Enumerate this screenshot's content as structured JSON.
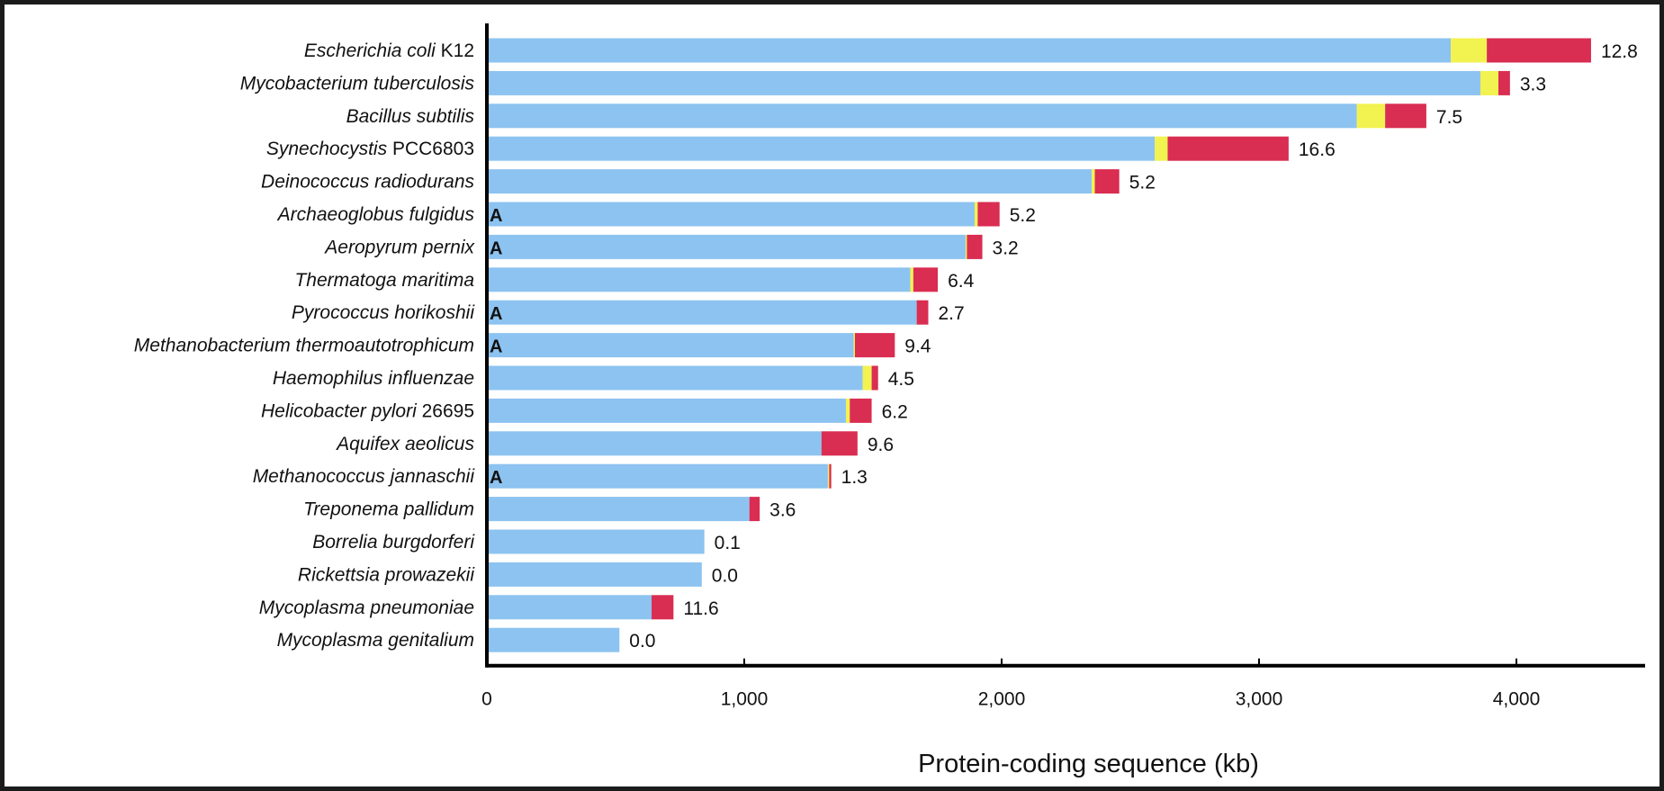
{
  "chart_data": {
    "type": "bar",
    "orientation": "horizontal",
    "stacked": true,
    "title": "",
    "xlabel": "Protein-coding sequence (kb)",
    "ylabel": "",
    "xlim": [
      0,
      4500
    ],
    "x_ticks": [
      0,
      1000,
      2000,
      3000,
      4000
    ],
    "x_tick_labels": [
      "0",
      "1,000",
      "2,000",
      "3,000",
      "4,000"
    ],
    "grid": false,
    "legend": "none",
    "categories": [
      {
        "name": "Escherichia coli",
        "suffix": " K12",
        "marker": "",
        "value_label": "12.8"
      },
      {
        "name": "Mycobacterium tuberculosis",
        "suffix": "",
        "marker": "",
        "value_label": "3.3"
      },
      {
        "name": "Bacillus subtilis",
        "suffix": "",
        "marker": "",
        "value_label": "7.5"
      },
      {
        "name": "Synechocystis",
        "suffix": " PCC6803",
        "marker": "",
        "value_label": "16.6"
      },
      {
        "name": "Deinococcus radiodurans",
        "suffix": "",
        "marker": "",
        "value_label": "5.2"
      },
      {
        "name": "Archaeoglobus fulgidus",
        "suffix": "",
        "marker": "A",
        "value_label": "5.2"
      },
      {
        "name": "Aeropyrum pernix",
        "suffix": "",
        "marker": "A",
        "value_label": "3.2"
      },
      {
        "name": "Thermatoga maritima",
        "suffix": "",
        "marker": "",
        "value_label": "6.4"
      },
      {
        "name": "Pyrococcus horikoshii",
        "suffix": "",
        "marker": "A",
        "value_label": "2.7"
      },
      {
        "name": "Methanobacterium thermoautotrophicum",
        "suffix": "",
        "marker": "A",
        "value_label": "9.4"
      },
      {
        "name": "Haemophilus influenzae",
        "suffix": "",
        "marker": "",
        "value_label": "4.5"
      },
      {
        "name": "Helicobacter pylori",
        "suffix": " 26695",
        "marker": "",
        "value_label": "6.2"
      },
      {
        "name": "Aquifex aeolicus",
        "suffix": "",
        "marker": "",
        "value_label": "9.6"
      },
      {
        "name": "Methanococcus jannaschii",
        "suffix": "",
        "marker": "A",
        "value_label": "1.3"
      },
      {
        "name": "Treponema pallidum",
        "suffix": "",
        "marker": "",
        "value_label": "3.6"
      },
      {
        "name": "Borrelia burgdorferi",
        "suffix": "",
        "marker": "",
        "value_label": "0.1"
      },
      {
        "name": "Rickettsia prowazekii",
        "suffix": "",
        "marker": "",
        "value_label": "0.0"
      },
      {
        "name": "Mycoplasma pneumoniae",
        "suffix": "",
        "marker": "",
        "value_label": "11.6"
      },
      {
        "name": "Mycoplasma genitalium",
        "suffix": "",
        "marker": "",
        "value_label": "0.0"
      }
    ],
    "series": [
      {
        "color": "#8dc3f0",
        "values": [
          3745,
          3860,
          3380,
          2595,
          2350,
          1895,
          1860,
          1645,
          1670,
          1425,
          1460,
          1395,
          1300,
          1325,
          1020,
          845,
          835,
          640,
          515
        ]
      },
      {
        "color": "#f2f250",
        "values": [
          140,
          70,
          110,
          50,
          12,
          12,
          5,
          12,
          0,
          5,
          35,
          15,
          0,
          5,
          0,
          0,
          0,
          0,
          0
        ]
      },
      {
        "color": "#d92d52",
        "values": [
          405,
          45,
          160,
          470,
          95,
          85,
          60,
          95,
          45,
          155,
          25,
          85,
          140,
          8,
          40,
          0,
          0,
          85,
          0
        ]
      }
    ]
  }
}
